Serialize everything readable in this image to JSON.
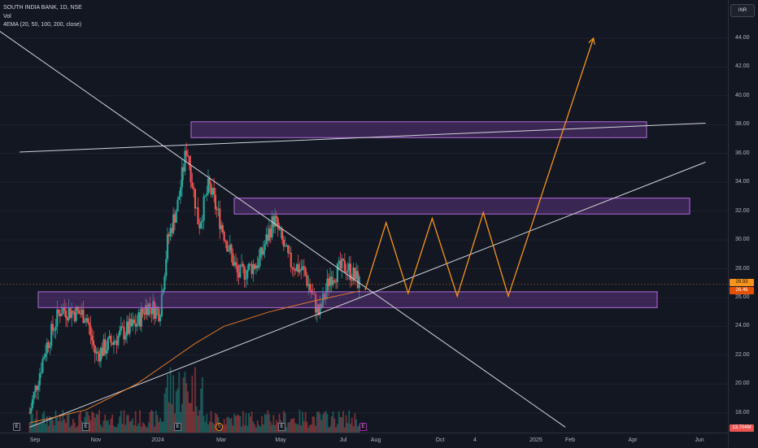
{
  "legend": {
    "symbol_line": "SOUTH INDIA BANK, 1D, NSE",
    "vol_label": "Vol",
    "ema_label": "4EMA (20, 50, 100, 200, close)"
  },
  "currency_button": "INR",
  "price_axis": {
    "ticks": [
      "44.00",
      "42.00",
      "40.00",
      "38.00",
      "36.00",
      "34.00",
      "32.00",
      "30.00",
      "28.00",
      "26.00",
      "24.00",
      "22.00",
      "20.00",
      "18.00"
    ],
    "current_price": "26.93",
    "ema_price": "26.46",
    "volume_value": "13.704M"
  },
  "time_axis": {
    "ticks": [
      "Sep",
      "Nov",
      "2024",
      "Mar",
      "May",
      "Jul",
      "Aug",
      "Oct",
      "4",
      "2025",
      "Feb",
      "Apr",
      "Jun"
    ]
  },
  "events": [
    "E",
    "E",
    "E",
    "S",
    "E",
    "E"
  ],
  "colors": {
    "background": "#131722",
    "up": "#26a69a",
    "down": "#ef5350",
    "zone_fill": "#7b3fa0",
    "zone_border": "#b46be0",
    "projection": "#f7931a",
    "ema": "#e07a2c",
    "trendline": "#d1d4dc"
  },
  "chart_data": {
    "type": "candlestick",
    "title": "SOUTH INDIA BANK, 1D, NSE",
    "ylim": [
      17,
      45.5
    ],
    "zones": [
      {
        "from": 37.1,
        "to": 38.2
      },
      {
        "from": 31.8,
        "to": 32.9
      },
      {
        "from": 25.3,
        "to": 26.4
      }
    ],
    "price_path": [
      {
        "date": "2023-08-20",
        "price": 18.0
      },
      {
        "date": "2023-09-05",
        "price": 22.5
      },
      {
        "date": "2023-09-20",
        "price": 25.2
      },
      {
        "date": "2023-10-15",
        "price": 24.8
      },
      {
        "date": "2023-10-25",
        "price": 22.0
      },
      {
        "date": "2023-11-20",
        "price": 23.5
      },
      {
        "date": "2023-12-05",
        "price": 24.2
      },
      {
        "date": "2023-12-15",
        "price": 25.5
      },
      {
        "date": "2023-12-28",
        "price": 25.0
      },
      {
        "date": "2024-01-05",
        "price": 30.0
      },
      {
        "date": "2024-01-15",
        "price": 32.5
      },
      {
        "date": "2024-01-24",
        "price": 36.5
      },
      {
        "date": "2024-02-05",
        "price": 31.0
      },
      {
        "date": "2024-02-15",
        "price": 33.8
      },
      {
        "date": "2024-03-01",
        "price": 30.5
      },
      {
        "date": "2024-03-15",
        "price": 27.5
      },
      {
        "date": "2024-04-05",
        "price": 28.5
      },
      {
        "date": "2024-04-20",
        "price": 31.5
      },
      {
        "date": "2024-05-05",
        "price": 28.5
      },
      {
        "date": "2024-05-20",
        "price": 27.8
      },
      {
        "date": "2024-06-04",
        "price": 24.8
      },
      {
        "date": "2024-06-15",
        "price": 27.5
      },
      {
        "date": "2024-07-01",
        "price": 28.2
      },
      {
        "date": "2024-07-15",
        "price": 26.93
      }
    ],
    "ema_path": [
      {
        "date": "2023-08-20",
        "price": 17.3
      },
      {
        "date": "2023-10-15",
        "price": 18.2
      },
      {
        "date": "2023-12-05",
        "price": 20.0
      },
      {
        "date": "2024-01-01",
        "price": 21.3
      },
      {
        "date": "2024-02-01",
        "price": 22.8
      },
      {
        "date": "2024-03-01",
        "price": 24.0
      },
      {
        "date": "2024-04-15",
        "price": 25.0
      },
      {
        "date": "2024-06-01",
        "price": 25.8
      },
      {
        "date": "2024-07-15",
        "price": 26.46
      }
    ],
    "projection": [
      {
        "date": "2024-07-20",
        "price": 26.5
      },
      {
        "date": "2024-08-10",
        "price": 31.2
      },
      {
        "date": "2024-09-01",
        "price": 26.3
      },
      {
        "date": "2024-09-25",
        "price": 31.5
      },
      {
        "date": "2024-10-20",
        "price": 26.1
      },
      {
        "date": "2024-11-15",
        "price": 31.9
      },
      {
        "date": "2024-12-10",
        "price": 26.1
      },
      {
        "date": "2025-03-05",
        "price": 44.0
      }
    ],
    "trendlines": [
      {
        "from": {
          "date": "2023-06-20",
          "price": 46.0
        },
        "to": {
          "date": "2025-02-05",
          "price": 17.0
        }
      },
      {
        "from": {
          "date": "2023-08-10",
          "price": 36.1
        },
        "to": {
          "date": "2025-06-25",
          "price": 38.1
        }
      },
      {
        "from": {
          "date": "2023-08-20",
          "price": 17.0
        },
        "to": {
          "date": "2025-06-25",
          "price": 35.4
        }
      }
    ],
    "current_price": 26.93,
    "ema_value": 26.46,
    "volume": 13.704
  }
}
